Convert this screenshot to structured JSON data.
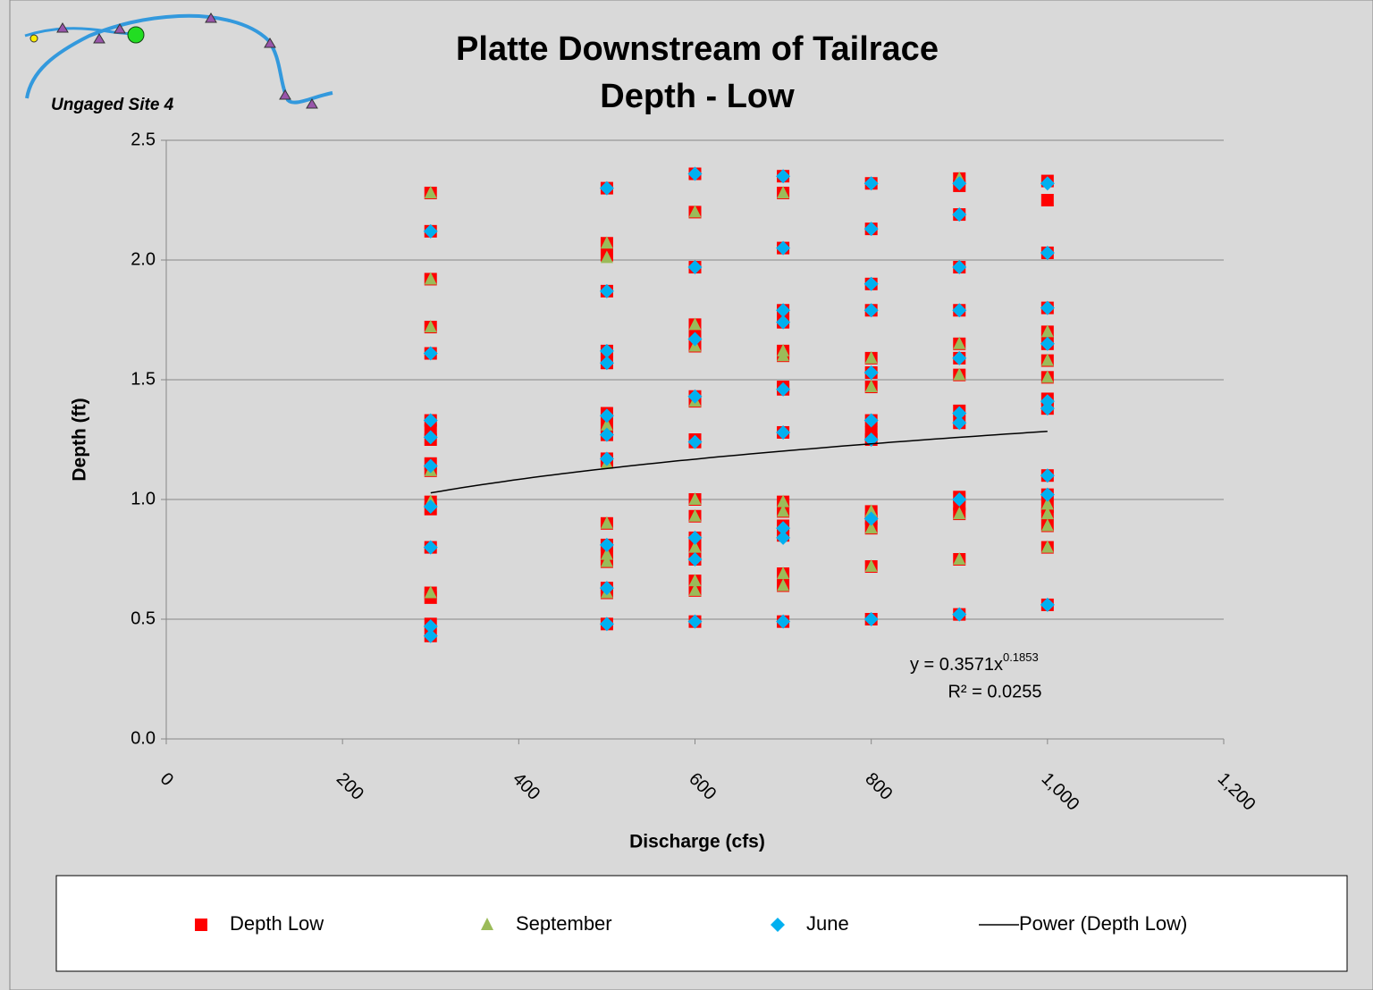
{
  "logo_text": "Ungaged Site 4",
  "chart_data": {
    "type": "scatter",
    "title": "Platte Downstream of Tailrace",
    "subtitle": "Depth - Low",
    "xlabel": "Discharge (cfs)",
    "ylabel": "Depth (ft)",
    "xlim": [
      0,
      1200
    ],
    "ylim": [
      0,
      2.5
    ],
    "xticks": [
      0,
      200,
      400,
      600,
      800,
      {
        "value": 1000,
        "label": "1,000"
      },
      {
        "value": 1200,
        "label": "1,200"
      }
    ],
    "yticks": [
      {
        "value": 0,
        "label": "0.0"
      },
      {
        "value": 0.5,
        "label": "0.5"
      },
      {
        "value": 1,
        "label": "1.0"
      },
      {
        "value": 1.5,
        "label": "1.5"
      },
      {
        "value": 2,
        "label": "2.0"
      },
      {
        "value": 2.5,
        "label": "2.5"
      }
    ],
    "grid": true,
    "legend": "bottom",
    "series": [
      {
        "name": "Depth Low",
        "color": "#ff0000",
        "marker": "square",
        "x": [
          300,
          300,
          300,
          300,
          300,
          300,
          300,
          300,
          300,
          300,
          300,
          300,
          300,
          300,
          300,
          300,
          300,
          500,
          500,
          500,
          500,
          500,
          500,
          500,
          500,
          500,
          500,
          500,
          500,
          500,
          500,
          500,
          500,
          500,
          500,
          600,
          600,
          600,
          600,
          600,
          600,
          600,
          600,
          600,
          600,
          600,
          600,
          600,
          600,
          600,
          600,
          600,
          600,
          600,
          700,
          700,
          700,
          700,
          700,
          700,
          700,
          700,
          700,
          700,
          700,
          700,
          700,
          700,
          700,
          700,
          700,
          800,
          800,
          800,
          800,
          800,
          800,
          800,
          800,
          800,
          800,
          800,
          800,
          800,
          800,
          800,
          900,
          900,
          900,
          900,
          900,
          900,
          900,
          900,
          900,
          900,
          900,
          900,
          900,
          900,
          900,
          1000,
          1000,
          1000,
          1000,
          1000,
          1000,
          1000,
          1000,
          1000,
          1000,
          1000,
          1000,
          1000,
          1000,
          1000,
          1000,
          1000
        ],
        "values": [
          2.28,
          2.12,
          1.92,
          1.72,
          1.61,
          1.33,
          1.29,
          1.25,
          1.15,
          1.12,
          0.99,
          0.96,
          0.8,
          0.61,
          0.59,
          0.48,
          0.43,
          2.3,
          2.07,
          2.02,
          1.87,
          1.62,
          1.57,
          1.36,
          1.31,
          1.27,
          1.17,
          1.16,
          0.9,
          0.81,
          0.77,
          0.74,
          0.63,
          0.61,
          0.48,
          2.36,
          2.2,
          1.97,
          1.73,
          1.69,
          1.66,
          1.64,
          1.43,
          1.41,
          1.25,
          1.24,
          1.0,
          0.93,
          0.84,
          0.8,
          0.75,
          0.66,
          0.62,
          0.49,
          2.35,
          2.28,
          2.05,
          1.79,
          1.74,
          1.62,
          1.6,
          1.47,
          1.46,
          1.28,
          0.99,
          0.95,
          0.89,
          0.85,
          0.69,
          0.64,
          0.49,
          2.32,
          2.13,
          1.9,
          1.79,
          1.59,
          1.53,
          1.47,
          1.33,
          1.28,
          1.25,
          0.95,
          0.92,
          0.88,
          0.72,
          0.5,
          2.34,
          2.31,
          2.19,
          1.97,
          1.79,
          1.65,
          1.59,
          1.52,
          1.37,
          1.32,
          1.01,
          0.98,
          0.94,
          0.75,
          0.52,
          2.33,
          2.25,
          2.03,
          1.8,
          1.7,
          1.65,
          1.58,
          1.51,
          1.42,
          1.38,
          1.1,
          1.02,
          0.97,
          0.94,
          0.89,
          0.8,
          0.56
        ]
      },
      {
        "name": "September",
        "color": "#9bbb59",
        "marker": "triangle",
        "x": [
          300,
          300,
          300,
          300,
          300,
          300,
          500,
          500,
          500,
          500,
          500,
          500,
          500,
          500,
          600,
          600,
          600,
          600,
          600,
          600,
          600,
          600,
          600,
          700,
          700,
          700,
          700,
          700,
          700,
          700,
          800,
          800,
          800,
          800,
          800,
          900,
          900,
          900,
          900,
          900,
          1000,
          1000,
          1000,
          1000,
          1000,
          1000,
          1000
        ],
        "values": [
          2.28,
          1.92,
          1.72,
          1.12,
          0.99,
          0.61,
          2.07,
          2.01,
          1.31,
          1.15,
          0.9,
          0.77,
          0.74,
          0.61,
          2.2,
          1.73,
          1.64,
          1.41,
          1.0,
          0.93,
          0.8,
          0.66,
          0.62,
          2.28,
          1.62,
          1.6,
          0.99,
          0.95,
          0.69,
          0.64,
          1.59,
          1.47,
          0.95,
          0.88,
          0.72,
          2.34,
          1.65,
          1.52,
          0.94,
          0.75,
          1.7,
          1.58,
          1.51,
          0.98,
          0.94,
          0.89,
          0.8
        ]
      },
      {
        "name": "June",
        "color": "#00b0f0",
        "marker": "diamond",
        "x": [
          300,
          300,
          300,
          300,
          300,
          300,
          300,
          300,
          300,
          500,
          500,
          500,
          500,
          500,
          500,
          500,
          500,
          500,
          500,
          600,
          600,
          600,
          600,
          600,
          600,
          600,
          600,
          700,
          700,
          700,
          700,
          700,
          700,
          700,
          700,
          700,
          800,
          800,
          800,
          800,
          800,
          800,
          800,
          800,
          800,
          900,
          900,
          900,
          900,
          900,
          900,
          900,
          900,
          900,
          1000,
          1000,
          1000,
          1000,
          1000,
          1000,
          1000,
          1000,
          1000
        ],
        "values": [
          2.12,
          1.61,
          1.33,
          1.26,
          1.14,
          0.97,
          0.8,
          0.47,
          0.43,
          2.3,
          1.87,
          1.62,
          1.57,
          1.35,
          1.27,
          1.17,
          0.81,
          0.63,
          0.48,
          2.36,
          1.97,
          1.67,
          1.43,
          1.24,
          0.84,
          0.75,
          0.49,
          2.35,
          2.05,
          1.79,
          1.74,
          1.46,
          1.28,
          0.88,
          0.84,
          0.49,
          2.32,
          2.13,
          1.9,
          1.79,
          1.53,
          1.33,
          1.25,
          0.92,
          0.5,
          2.32,
          2.19,
          1.97,
          1.79,
          1.59,
          1.36,
          1.32,
          1.0,
          0.52,
          2.32,
          2.03,
          1.8,
          1.65,
          1.41,
          1.38,
          1.1,
          1.02,
          0.56
        ]
      }
    ],
    "trendline": {
      "name": "Power (Depth Low)",
      "color": "#000000",
      "coefficient": 0.3571,
      "exponent": 0.1853,
      "r2": 0.0255,
      "x_range": [
        300,
        1000
      ],
      "equation_label": "y = 0.3571x",
      "exponent_label": "0.1853",
      "r2_label": "R² = 0.0255"
    }
  }
}
